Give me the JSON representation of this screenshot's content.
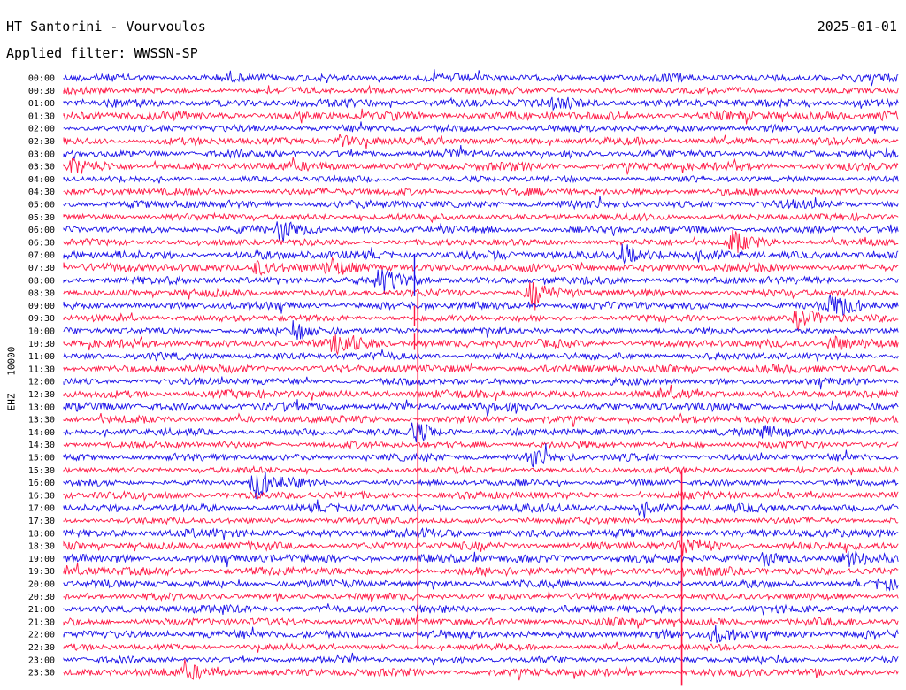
{
  "header": {
    "station": "HT Santorini - Vourvoulos",
    "date": "2025-01-01",
    "filter_text": "Applied filter: WWSSN-SP",
    "channel_label": "EHZ - 10000"
  },
  "colors": {
    "trace_a": "#1a10e8",
    "trace_b": "#ff1744",
    "background": "#ffffff",
    "text": "#000000"
  },
  "chart_data": {
    "type": "line",
    "rows": [
      {
        "label": "00:00",
        "color": "blue"
      },
      {
        "label": "00:30",
        "color": "red"
      },
      {
        "label": "01:00",
        "color": "blue"
      },
      {
        "label": "01:30",
        "color": "red"
      },
      {
        "label": "02:00",
        "color": "blue"
      },
      {
        "label": "02:30",
        "color": "red"
      },
      {
        "label": "03:00",
        "color": "blue"
      },
      {
        "label": "03:30",
        "color": "red"
      },
      {
        "label": "04:00",
        "color": "blue"
      },
      {
        "label": "04:30",
        "color": "red"
      },
      {
        "label": "05:00",
        "color": "blue"
      },
      {
        "label": "05:30",
        "color": "red"
      },
      {
        "label": "06:00",
        "color": "blue"
      },
      {
        "label": "06:30",
        "color": "red"
      },
      {
        "label": "07:00",
        "color": "blue"
      },
      {
        "label": "07:30",
        "color": "red"
      },
      {
        "label": "08:00",
        "color": "blue"
      },
      {
        "label": "08:30",
        "color": "red"
      },
      {
        "label": "09:00",
        "color": "blue"
      },
      {
        "label": "09:30",
        "color": "red"
      },
      {
        "label": "10:00",
        "color": "blue"
      },
      {
        "label": "10:30",
        "color": "red"
      },
      {
        "label": "11:00",
        "color": "blue"
      },
      {
        "label": "11:30",
        "color": "red"
      },
      {
        "label": "12:00",
        "color": "blue"
      },
      {
        "label": "12:30",
        "color": "red"
      },
      {
        "label": "13:00",
        "color": "blue"
      },
      {
        "label": "13:30",
        "color": "red"
      },
      {
        "label": "14:00",
        "color": "blue"
      },
      {
        "label": "14:30",
        "color": "red"
      },
      {
        "label": "15:00",
        "color": "blue"
      },
      {
        "label": "15:30",
        "color": "red"
      },
      {
        "label": "16:00",
        "color": "blue"
      },
      {
        "label": "16:30",
        "color": "red"
      },
      {
        "label": "17:00",
        "color": "blue"
      },
      {
        "label": "17:30",
        "color": "red"
      },
      {
        "label": "18:00",
        "color": "blue"
      },
      {
        "label": "18:30",
        "color": "red"
      },
      {
        "label": "19:00",
        "color": "blue"
      },
      {
        "label": "19:30",
        "color": "red"
      },
      {
        "label": "20:00",
        "color": "blue"
      },
      {
        "label": "20:30",
        "color": "red"
      },
      {
        "label": "21:00",
        "color": "blue"
      },
      {
        "label": "21:30",
        "color": "red"
      },
      {
        "label": "22:00",
        "color": "blue"
      },
      {
        "label": "22:30",
        "color": "red"
      },
      {
        "label": "23:00",
        "color": "blue"
      },
      {
        "label": "23:30",
        "color": "red"
      }
    ],
    "events": [
      {
        "row": 2,
        "x": 0.59,
        "a": 0.5
      },
      {
        "row": 3,
        "x": 0.98,
        "a": 0.6
      },
      {
        "row": 5,
        "x": 0.33,
        "a": 0.7
      },
      {
        "row": 7,
        "x": 0.01,
        "a": 0.6
      },
      {
        "row": 12,
        "x": 0.26,
        "a": 1.3
      },
      {
        "row": 13,
        "x": 0.8,
        "a": 1.3
      },
      {
        "row": 14,
        "x": 0.67,
        "a": 1.3
      },
      {
        "row": 15,
        "x": 0.23,
        "a": 0.9
      },
      {
        "row": 15,
        "x": 0.32,
        "a": 0.7
      },
      {
        "row": 16,
        "x": 0.38,
        "a": 1.6
      },
      {
        "row": 17,
        "x": 0.56,
        "a": 1.4
      },
      {
        "row": 18,
        "x": 0.92,
        "a": 1.4
      },
      {
        "row": 19,
        "x": 0.88,
        "a": 1.3
      },
      {
        "row": 20,
        "x": 0.28,
        "a": 0.8
      },
      {
        "row": 21,
        "x": 0.33,
        "a": 1.3
      },
      {
        "row": 21,
        "x": 0.92,
        "a": 1.0
      },
      {
        "row": 28,
        "x": 0.42,
        "a": 1.2
      },
      {
        "row": 28,
        "x": 0.84,
        "a": 0.7
      },
      {
        "row": 30,
        "x": 0.56,
        "a": 1.1
      },
      {
        "row": 32,
        "x": 0.23,
        "a": 1.9
      },
      {
        "row": 34,
        "x": 0.69,
        "a": 0.6
      },
      {
        "row": 37,
        "x": 0.74,
        "a": 1.0
      },
      {
        "row": 38,
        "x": 0.84,
        "a": 0.7
      },
      {
        "row": 38,
        "x": 0.94,
        "a": 0.6
      },
      {
        "row": 40,
        "x": 0.98,
        "a": 0.6
      },
      {
        "row": 44,
        "x": 0.78,
        "a": 1.0
      },
      {
        "row": 47,
        "x": 0.15,
        "a": 0.7
      }
    ],
    "spikes": [
      {
        "row": 16,
        "x": 0.42,
        "len": 30
      },
      {
        "row": 19,
        "x": 0.42,
        "len": 14
      },
      {
        "row": 21,
        "x": 0.42,
        "len": 12
      },
      {
        "row": 35,
        "x": 0.74,
        "len": 16
      },
      {
        "row": 40,
        "x": 0.74,
        "len": 14
      }
    ],
    "long_line": [
      {
        "x": 0.424,
        "from_row": 17,
        "to_row": 45
      },
      {
        "x": 0.74,
        "from_row": 31,
        "to_row": 48
      }
    ]
  }
}
